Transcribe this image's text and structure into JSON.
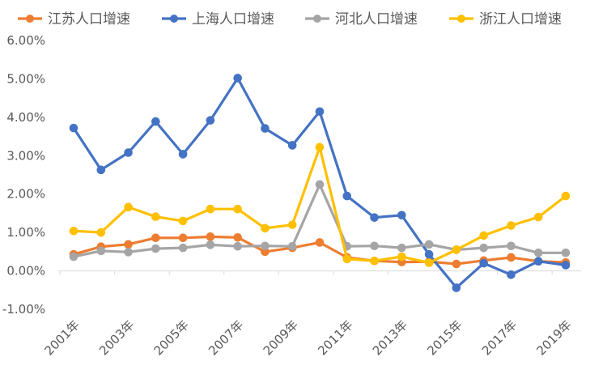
{
  "chart_data": {
    "type": "line",
    "title": "",
    "xlabel": "",
    "ylabel": "",
    "categories": [
      "2001年",
      "2002年",
      "2003年",
      "2004年",
      "2005年",
      "2006年",
      "2007年",
      "2008年",
      "2009年",
      "2010年",
      "2011年",
      "2012年",
      "2013年",
      "2014年",
      "2015年",
      "2016年",
      "2017年",
      "2018年",
      "2019年"
    ],
    "x_tick_labels": [
      "2001年",
      "2003年",
      "2005年",
      "2007年",
      "2009年",
      "2011年",
      "2013年",
      "2015年",
      "2017年",
      "2019年"
    ],
    "y_tick_labels": [
      "-1.00%",
      "0.00%",
      "1.00%",
      "2.00%",
      "3.00%",
      "4.00%",
      "5.00%",
      "6.00%"
    ],
    "ylim": [
      -1.0,
      6.0
    ],
    "y_unit": "%",
    "grid": false,
    "legend_position": "top",
    "series": [
      {
        "name": "江苏人口增速",
        "color": "#ED7D31",
        "values": [
          0.43,
          0.63,
          0.69,
          0.86,
          0.86,
          0.89,
          0.87,
          0.5,
          0.6,
          0.74,
          0.35,
          0.26,
          0.23,
          0.24,
          0.18,
          0.27,
          0.35,
          0.25,
          0.22
        ]
      },
      {
        "name": "上海人口增速",
        "color": "#4472C4",
        "values": [
          3.72,
          2.63,
          3.08,
          3.89,
          3.04,
          3.92,
          5.02,
          3.71,
          3.27,
          4.15,
          1.95,
          1.39,
          1.45,
          0.43,
          -0.44,
          0.2,
          -0.1,
          0.25,
          0.15
        ]
      },
      {
        "name": "河北人口增速",
        "color": "#A5A5A5",
        "values": [
          0.37,
          0.52,
          0.49,
          0.58,
          0.6,
          0.68,
          0.64,
          0.65,
          0.64,
          2.25,
          0.64,
          0.65,
          0.6,
          0.69,
          0.55,
          0.6,
          0.65,
          0.47,
          0.47
        ]
      },
      {
        "name": "浙江人口增速",
        "color": "#FFC000",
        "values": [
          1.04,
          1.0,
          1.66,
          1.41,
          1.3,
          1.61,
          1.61,
          1.11,
          1.2,
          3.22,
          0.31,
          0.26,
          0.37,
          0.21,
          0.55,
          0.92,
          1.18,
          1.4,
          1.95
        ]
      }
    ]
  }
}
